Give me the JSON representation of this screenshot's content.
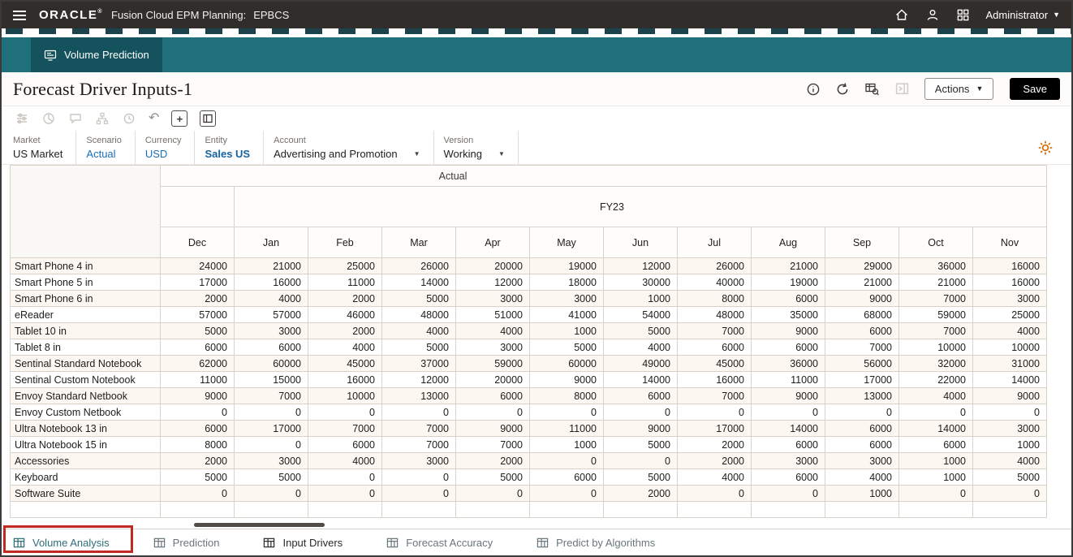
{
  "colors": {
    "topbar_bg": "#312d2a",
    "band_teal": "#20707c",
    "nav_tab_teal": "#14525d",
    "link_blue": "#1a6fb8",
    "save_button_bg": "#000000",
    "gear_orange": "#d4710f",
    "annotation_red": "#c02a21"
  },
  "topbar": {
    "brand": "ORACLE",
    "brand_mark": "®",
    "product": "Fusion Cloud EPM Planning:",
    "environment": "EPBCS",
    "user_menu": "Administrator"
  },
  "nav": {
    "active_tab": "Volume Prediction"
  },
  "page_header": {
    "title": "Forecast Driver Inputs-1",
    "actions_button": "Actions",
    "save_button": "Save"
  },
  "pov": {
    "items": [
      {
        "label": "Market",
        "value": "US Market",
        "style": "plain",
        "dropdown": false
      },
      {
        "label": "Scenario",
        "value": "Actual",
        "style": "link",
        "dropdown": false
      },
      {
        "label": "Currency",
        "value": "USD",
        "style": "link",
        "dropdown": false
      },
      {
        "label": "Entity",
        "value": "Sales US",
        "style": "link-bold",
        "dropdown": false
      },
      {
        "label": "Account",
        "value": "Advertising and Promotion",
        "style": "plain",
        "dropdown": true
      },
      {
        "label": "Version",
        "value": "Working",
        "style": "plain",
        "dropdown": true
      }
    ]
  },
  "grid": {
    "scenario_span": "Actual",
    "year_span": "FY23",
    "months": [
      "Dec",
      "Jan",
      "Feb",
      "Mar",
      "Apr",
      "May",
      "Jun",
      "Jul",
      "Aug",
      "Sep",
      "Oct",
      "Nov"
    ],
    "rows": [
      {
        "name": "Smart Phone 4 in",
        "values": [
          24000,
          21000,
          25000,
          26000,
          20000,
          19000,
          12000,
          26000,
          21000,
          29000,
          36000,
          16000
        ]
      },
      {
        "name": "Smart Phone 5 in",
        "values": [
          17000,
          16000,
          11000,
          14000,
          12000,
          18000,
          30000,
          40000,
          19000,
          21000,
          21000,
          16000
        ]
      },
      {
        "name": "Smart Phone 6 in",
        "values": [
          2000,
          4000,
          2000,
          5000,
          3000,
          3000,
          1000,
          8000,
          6000,
          9000,
          7000,
          3000
        ]
      },
      {
        "name": "eReader",
        "values": [
          57000,
          57000,
          46000,
          48000,
          51000,
          41000,
          54000,
          48000,
          35000,
          68000,
          59000,
          25000
        ]
      },
      {
        "name": "Tablet 10 in",
        "values": [
          5000,
          3000,
          2000,
          4000,
          4000,
          1000,
          5000,
          7000,
          9000,
          6000,
          7000,
          4000
        ]
      },
      {
        "name": "Tablet 8 in",
        "values": [
          6000,
          6000,
          4000,
          5000,
          3000,
          5000,
          4000,
          6000,
          6000,
          7000,
          10000,
          10000
        ]
      },
      {
        "name": "Sentinal Standard Notebook",
        "values": [
          62000,
          60000,
          45000,
          37000,
          59000,
          60000,
          49000,
          45000,
          36000,
          56000,
          32000,
          31000
        ]
      },
      {
        "name": "Sentinal Custom Notebook",
        "values": [
          11000,
          15000,
          16000,
          12000,
          20000,
          9000,
          14000,
          16000,
          11000,
          17000,
          22000,
          14000
        ]
      },
      {
        "name": "Envoy Standard Netbook",
        "values": [
          9000,
          7000,
          10000,
          13000,
          6000,
          8000,
          6000,
          7000,
          9000,
          13000,
          4000,
          9000
        ]
      },
      {
        "name": "Envoy Custom Netbook",
        "values": [
          0,
          0,
          0,
          0,
          0,
          0,
          0,
          0,
          0,
          0,
          0,
          0
        ]
      },
      {
        "name": "Ultra Notebook 13 in",
        "values": [
          6000,
          17000,
          7000,
          7000,
          9000,
          11000,
          9000,
          17000,
          14000,
          6000,
          14000,
          3000
        ]
      },
      {
        "name": "Ultra Notebook 15 in",
        "values": [
          8000,
          0,
          6000,
          7000,
          7000,
          1000,
          5000,
          2000,
          6000,
          6000,
          6000,
          1000
        ]
      },
      {
        "name": "Accessories",
        "values": [
          2000,
          3000,
          4000,
          3000,
          2000,
          0,
          0,
          2000,
          3000,
          3000,
          1000,
          4000
        ]
      },
      {
        "name": "Keyboard",
        "values": [
          5000,
          5000,
          0,
          0,
          5000,
          6000,
          5000,
          4000,
          6000,
          4000,
          1000,
          5000
        ]
      },
      {
        "name": "Software Suite",
        "values": [
          0,
          0,
          0,
          0,
          0,
          0,
          2000,
          0,
          0,
          1000,
          0,
          0
        ]
      }
    ]
  },
  "bottom_tabs": [
    {
      "label": "Volume Analysis",
      "state": "highlighted"
    },
    {
      "label": "Prediction",
      "state": "normal"
    },
    {
      "label": "Input Drivers",
      "state": "active"
    },
    {
      "label": "Forecast Accuracy",
      "state": "normal"
    },
    {
      "label": "Predict by Algorithms",
      "state": "normal"
    }
  ]
}
